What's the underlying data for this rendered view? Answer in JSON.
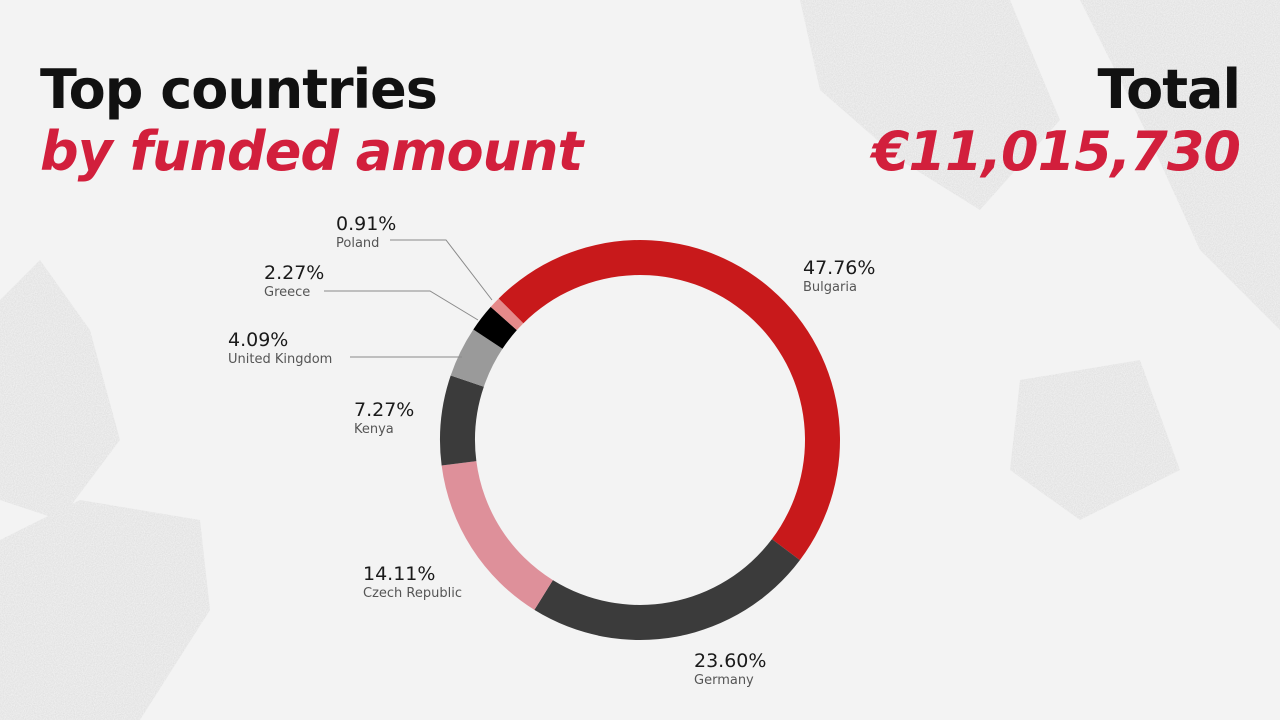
{
  "title": {
    "line1": "Top countries",
    "line2": "by funded amount"
  },
  "total": {
    "label": "Total",
    "value": "€11,015,730"
  },
  "colors": {
    "accent": "#d21f3c",
    "title": "#111111",
    "background": "#f3f3f3"
  },
  "chart_data": {
    "type": "pie",
    "variant": "donut",
    "title": "Top countries by funded amount",
    "slices": [
      {
        "name": "Bulgaria",
        "value": 47.76,
        "label": "47.76%",
        "color": "#c8191b"
      },
      {
        "name": "Germany",
        "value": 23.6,
        "label": "23.60%",
        "color": "#3b3b3b"
      },
      {
        "name": "Czech Republic",
        "value": 14.11,
        "label": "14.11%",
        "color": "#de909a"
      },
      {
        "name": "Kenya",
        "value": 7.27,
        "label": "7.27%",
        "color": "#3b3b3b"
      },
      {
        "name": "United Kingdom",
        "value": 4.09,
        "label": "4.09%",
        "color": "#9a9a9a"
      },
      {
        "name": "Greece",
        "value": 2.27,
        "label": "2.27%",
        "color": "#000000"
      },
      {
        "name": "Poland",
        "value": 0.91,
        "label": "0.91%",
        "color": "#e58a8a"
      }
    ]
  }
}
